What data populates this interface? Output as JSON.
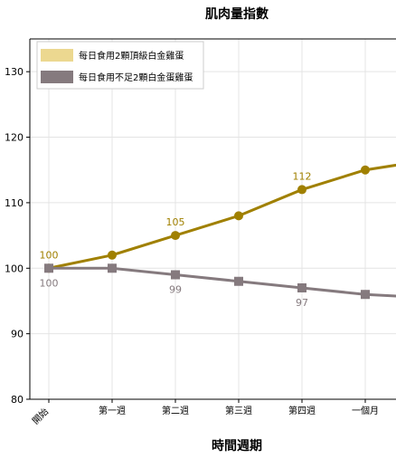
{
  "chart_data": {
    "type": "line",
    "title": "肌肉量指數",
    "xlabel": "時間週期",
    "ylabel": "",
    "categories": [
      "開始",
      "第一週",
      "第二週",
      "第三週",
      "第四週",
      "一個月",
      ""
    ],
    "ylim": [
      80,
      135
    ],
    "yticks": [
      80,
      90,
      100,
      110,
      120,
      130
    ],
    "grid": true,
    "legend_position": "top-left",
    "series": [
      {
        "name": "每日食用2顆頂級白金雞蛋",
        "color": "#a08000",
        "marker": "circle",
        "values": [
          100,
          102,
          105,
          108,
          112,
          115,
          116.5
        ],
        "labels": [
          {
            "index": 0,
            "text": "100"
          },
          {
            "index": 2,
            "text": "105"
          },
          {
            "index": 4,
            "text": "112"
          }
        ]
      },
      {
        "name": "每日食用不足2顆白金蛋雞蛋",
        "color": "#857a7e",
        "marker": "square",
        "values": [
          100,
          100,
          99,
          98,
          97,
          96,
          95.5
        ],
        "labels": [
          {
            "index": 0,
            "text": "100"
          },
          {
            "index": 2,
            "text": "99"
          },
          {
            "index": 4,
            "text": "97"
          }
        ]
      }
    ]
  }
}
